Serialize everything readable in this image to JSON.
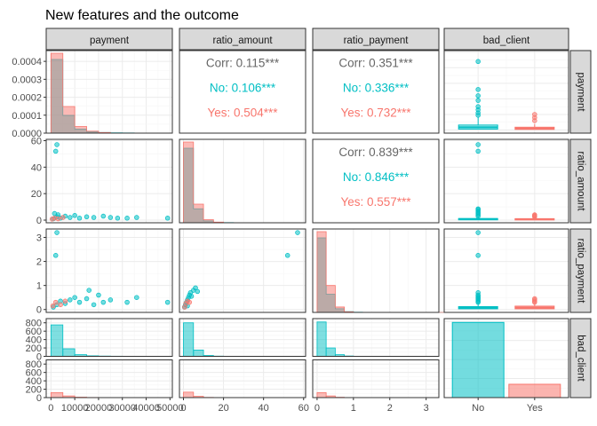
{
  "title": "New features and the outcome",
  "colors": {
    "no": "#00BFC4",
    "yes": "#F8766D",
    "overall": "#666666"
  },
  "chart_data": {
    "type": "pairs",
    "title": "New features and the outcome",
    "variables": [
      "payment",
      "ratio_amount",
      "ratio_payment",
      "bad_client"
    ],
    "groups": [
      "No",
      "Yes"
    ],
    "axes": {
      "payment": {
        "range": [
          -2000,
          51000
        ],
        "ticks": [
          0,
          10000,
          20000,
          30000,
          40000,
          50000
        ],
        "tick_labels": [
          "0",
          "10000",
          "20000",
          "30000",
          "40000",
          "50000"
        ],
        "density_range": [
          0,
          0.00046
        ],
        "density_ticks": [
          0,
          0.0001,
          0.0002,
          0.0003,
          0.0004
        ],
        "density_tick_labels": [
          "0.0000",
          "0.0001",
          "0.0002",
          "0.0003",
          "0.0004"
        ]
      },
      "ratio_amount": {
        "range": [
          -2,
          61
        ],
        "ticks": [
          0,
          20,
          40,
          60
        ],
        "tick_labels": [
          "0",
          "20",
          "40",
          "60"
        ]
      },
      "ratio_payment": {
        "range": [
          -0.12,
          3.35
        ],
        "ticks": [
          0,
          1,
          2,
          3
        ],
        "tick_labels": [
          "0",
          "1",
          "2",
          "3"
        ]
      },
      "bad_client_count": {
        "range": [
          0,
          900
        ],
        "ticks": [
          0,
          200,
          400,
          600,
          800
        ],
        "tick_labels": [
          "0",
          "200",
          "400",
          "600",
          "800"
        ]
      }
    },
    "correlations": [
      {
        "pair": [
          "payment",
          "ratio_amount"
        ],
        "overall": "Corr: 0.115***",
        "no": "No: 0.106***",
        "yes": "Yes: 0.504***"
      },
      {
        "pair": [
          "payment",
          "ratio_payment"
        ],
        "overall": "Corr: 0.351***",
        "no": "No: 0.336***",
        "yes": "Yes: 0.732***"
      },
      {
        "pair": [
          "ratio_amount",
          "ratio_payment"
        ],
        "overall": "Corr: 0.839***",
        "no": "No: 0.846***",
        "yes": "Yes: 0.557***"
      }
    ],
    "bar_counts": {
      "categories": [
        "No",
        "Yes"
      ],
      "values": [
        790,
        140
      ]
    },
    "boxplots": {
      "payment": {
        "No": {
          "q1": 600,
          "median": 1800,
          "q3": 3200,
          "whisker_high": 8500,
          "outliers": [
            9500,
            11000,
            13000,
            15000,
            19000,
            22000,
            26000,
            44000
          ]
        },
        "Yes": {
          "q1": 400,
          "median": 1000,
          "q3": 1800,
          "whisker_high": 3800,
          "outliers": [
            6000,
            8000,
            10000
          ]
        }
      },
      "ratio_amount": {
        "No": {
          "q1": 0.4,
          "median": 0.8,
          "q3": 1.2,
          "whisker_high": 2.5,
          "outliers": [
            3,
            4,
            5,
            6,
            7,
            8,
            8.5,
            52,
            57
          ]
        },
        "Yes": {
          "q1": 0.4,
          "median": 0.7,
          "q3": 1.1,
          "whisker_high": 2.0,
          "outliers": [
            2.5,
            3,
            3.5,
            4
          ]
        }
      },
      "ratio_payment": {
        "No": {
          "q1": 0.03,
          "median": 0.07,
          "q3": 0.12,
          "whisker_high": 0.25,
          "outliers": [
            0.3,
            0.35,
            0.4,
            0.45,
            0.5,
            0.55,
            0.6,
            0.7,
            2.25,
            3.2
          ]
        },
        "Yes": {
          "q1": 0.03,
          "median": 0.08,
          "q3": 0.14,
          "whisker_high": 0.25,
          "outliers": [
            0.3,
            0.35,
            0.4,
            0.45
          ]
        }
      }
    },
    "scatter": {
      "payment_vs_ratio_amount": [
        {
          "g": "No",
          "x": 1000,
          "y": 1
        },
        {
          "g": "No",
          "x": 2500,
          "y": 2.5
        },
        {
          "g": "No",
          "x": 4000,
          "y": 1.5
        },
        {
          "g": "No",
          "x": 6000,
          "y": 3
        },
        {
          "g": "No",
          "x": 8000,
          "y": 2
        },
        {
          "g": "No",
          "x": 10000,
          "y": 3.5
        },
        {
          "g": "No",
          "x": 12000,
          "y": 1.5
        },
        {
          "g": "No",
          "x": 15000,
          "y": 2.5
        },
        {
          "g": "No",
          "x": 18000,
          "y": 2
        },
        {
          "g": "No",
          "x": 22000,
          "y": 3
        },
        {
          "g": "No",
          "x": 25000,
          "y": 2
        },
        {
          "g": "No",
          "x": 28000,
          "y": 1.5
        },
        {
          "g": "No",
          "x": 32000,
          "y": 1.5
        },
        {
          "g": "No",
          "x": 36000,
          "y": 2
        },
        {
          "g": "No",
          "x": 49000,
          "y": 1.5
        },
        {
          "g": "No",
          "x": 1500,
          "y": 5
        },
        {
          "g": "No",
          "x": 3000,
          "y": 4
        },
        {
          "g": "No",
          "x": 2000,
          "y": 52
        },
        {
          "g": "No",
          "x": 2500,
          "y": 57
        },
        {
          "g": "Yes",
          "x": 500,
          "y": 0.8
        },
        {
          "g": "Yes",
          "x": 1500,
          "y": 1.5
        },
        {
          "g": "Yes",
          "x": 3000,
          "y": 1
        },
        {
          "g": "Yes",
          "x": 5000,
          "y": 2
        }
      ],
      "payment_vs_ratio_payment": [
        {
          "g": "No",
          "x": 1000,
          "y": 0.1
        },
        {
          "g": "No",
          "x": 2500,
          "y": 0.2
        },
        {
          "g": "No",
          "x": 4000,
          "y": 0.35
        },
        {
          "g": "No",
          "x": 6000,
          "y": 0.25
        },
        {
          "g": "No",
          "x": 8000,
          "y": 0.4
        },
        {
          "g": "No",
          "x": 10000,
          "y": 0.5
        },
        {
          "g": "No",
          "x": 12000,
          "y": 0.3
        },
        {
          "g": "No",
          "x": 15000,
          "y": 0.45
        },
        {
          "g": "No",
          "x": 18000,
          "y": 0.2
        },
        {
          "g": "No",
          "x": 20000,
          "y": 0.6
        },
        {
          "g": "No",
          "x": 22000,
          "y": 0.3
        },
        {
          "g": "No",
          "x": 25000,
          "y": 0.4
        },
        {
          "g": "No",
          "x": 32000,
          "y": 0.3
        },
        {
          "g": "No",
          "x": 36000,
          "y": 0.5
        },
        {
          "g": "No",
          "x": 49000,
          "y": 0.3
        },
        {
          "g": "No",
          "x": 16000,
          "y": 0.8
        },
        {
          "g": "No",
          "x": 2000,
          "y": 2.25
        },
        {
          "g": "No",
          "x": 2500,
          "y": 3.2
        },
        {
          "g": "Yes",
          "x": 800,
          "y": 0.15
        },
        {
          "g": "Yes",
          "x": 2000,
          "y": 0.3
        },
        {
          "g": "Yes",
          "x": 4000,
          "y": 0.2
        },
        {
          "g": "Yes",
          "x": 6000,
          "y": 0.35
        }
      ],
      "ratio_amount_vs_ratio_payment": [
        {
          "g": "No",
          "x": 0.5,
          "y": 0.1
        },
        {
          "g": "No",
          "x": 1,
          "y": 0.2
        },
        {
          "g": "No",
          "x": 1.5,
          "y": 0.3
        },
        {
          "g": "No",
          "x": 2,
          "y": 0.4
        },
        {
          "g": "No",
          "x": 2.5,
          "y": 0.5
        },
        {
          "g": "No",
          "x": 3,
          "y": 0.6
        },
        {
          "g": "No",
          "x": 3.5,
          "y": 0.7
        },
        {
          "g": "No",
          "x": 4,
          "y": 0.55
        },
        {
          "g": "No",
          "x": 5,
          "y": 0.8
        },
        {
          "g": "No",
          "x": 6,
          "y": 0.9
        },
        {
          "g": "No",
          "x": 7,
          "y": 0.75
        },
        {
          "g": "No",
          "x": 2,
          "y": 0.15
        },
        {
          "g": "No",
          "x": 52,
          "y": 2.25
        },
        {
          "g": "No",
          "x": 57,
          "y": 3.2
        },
        {
          "g": "Yes",
          "x": 0.6,
          "y": 0.1
        },
        {
          "g": "Yes",
          "x": 1.2,
          "y": 0.25
        },
        {
          "g": "Yes",
          "x": 2,
          "y": 0.35
        },
        {
          "g": "Yes",
          "x": 3,
          "y": 0.3
        }
      ]
    },
    "histograms": {
      "payment": {
        "No": [
          750,
          180,
          40,
          12,
          6,
          3,
          2,
          1,
          1,
          1
        ],
        "Yes": [
          120,
          40,
          10,
          3,
          1,
          0,
          0,
          0,
          0,
          0
        ],
        "bin_width": 5000,
        "start": 0
      },
      "ratio_amount": {
        "No": [
          800,
          150,
          20,
          5,
          2,
          0,
          0,
          0,
          0,
          0,
          0,
          0
        ],
        "Yes": [
          130,
          30,
          5,
          1,
          0,
          0,
          0,
          0,
          0,
          0,
          0,
          0
        ],
        "bin_width": 5,
        "start": 0
      },
      "ratio_payment": {
        "No": [
          820,
          200,
          40,
          8,
          2,
          0,
          0,
          0,
          0,
          0,
          0,
          0,
          0,
          0
        ],
        "Yes": [
          120,
          40,
          8,
          1,
          0,
          0,
          0,
          0,
          0,
          0,
          0,
          0,
          0,
          0
        ],
        "bin_width": 0.25,
        "start": 0
      }
    }
  }
}
